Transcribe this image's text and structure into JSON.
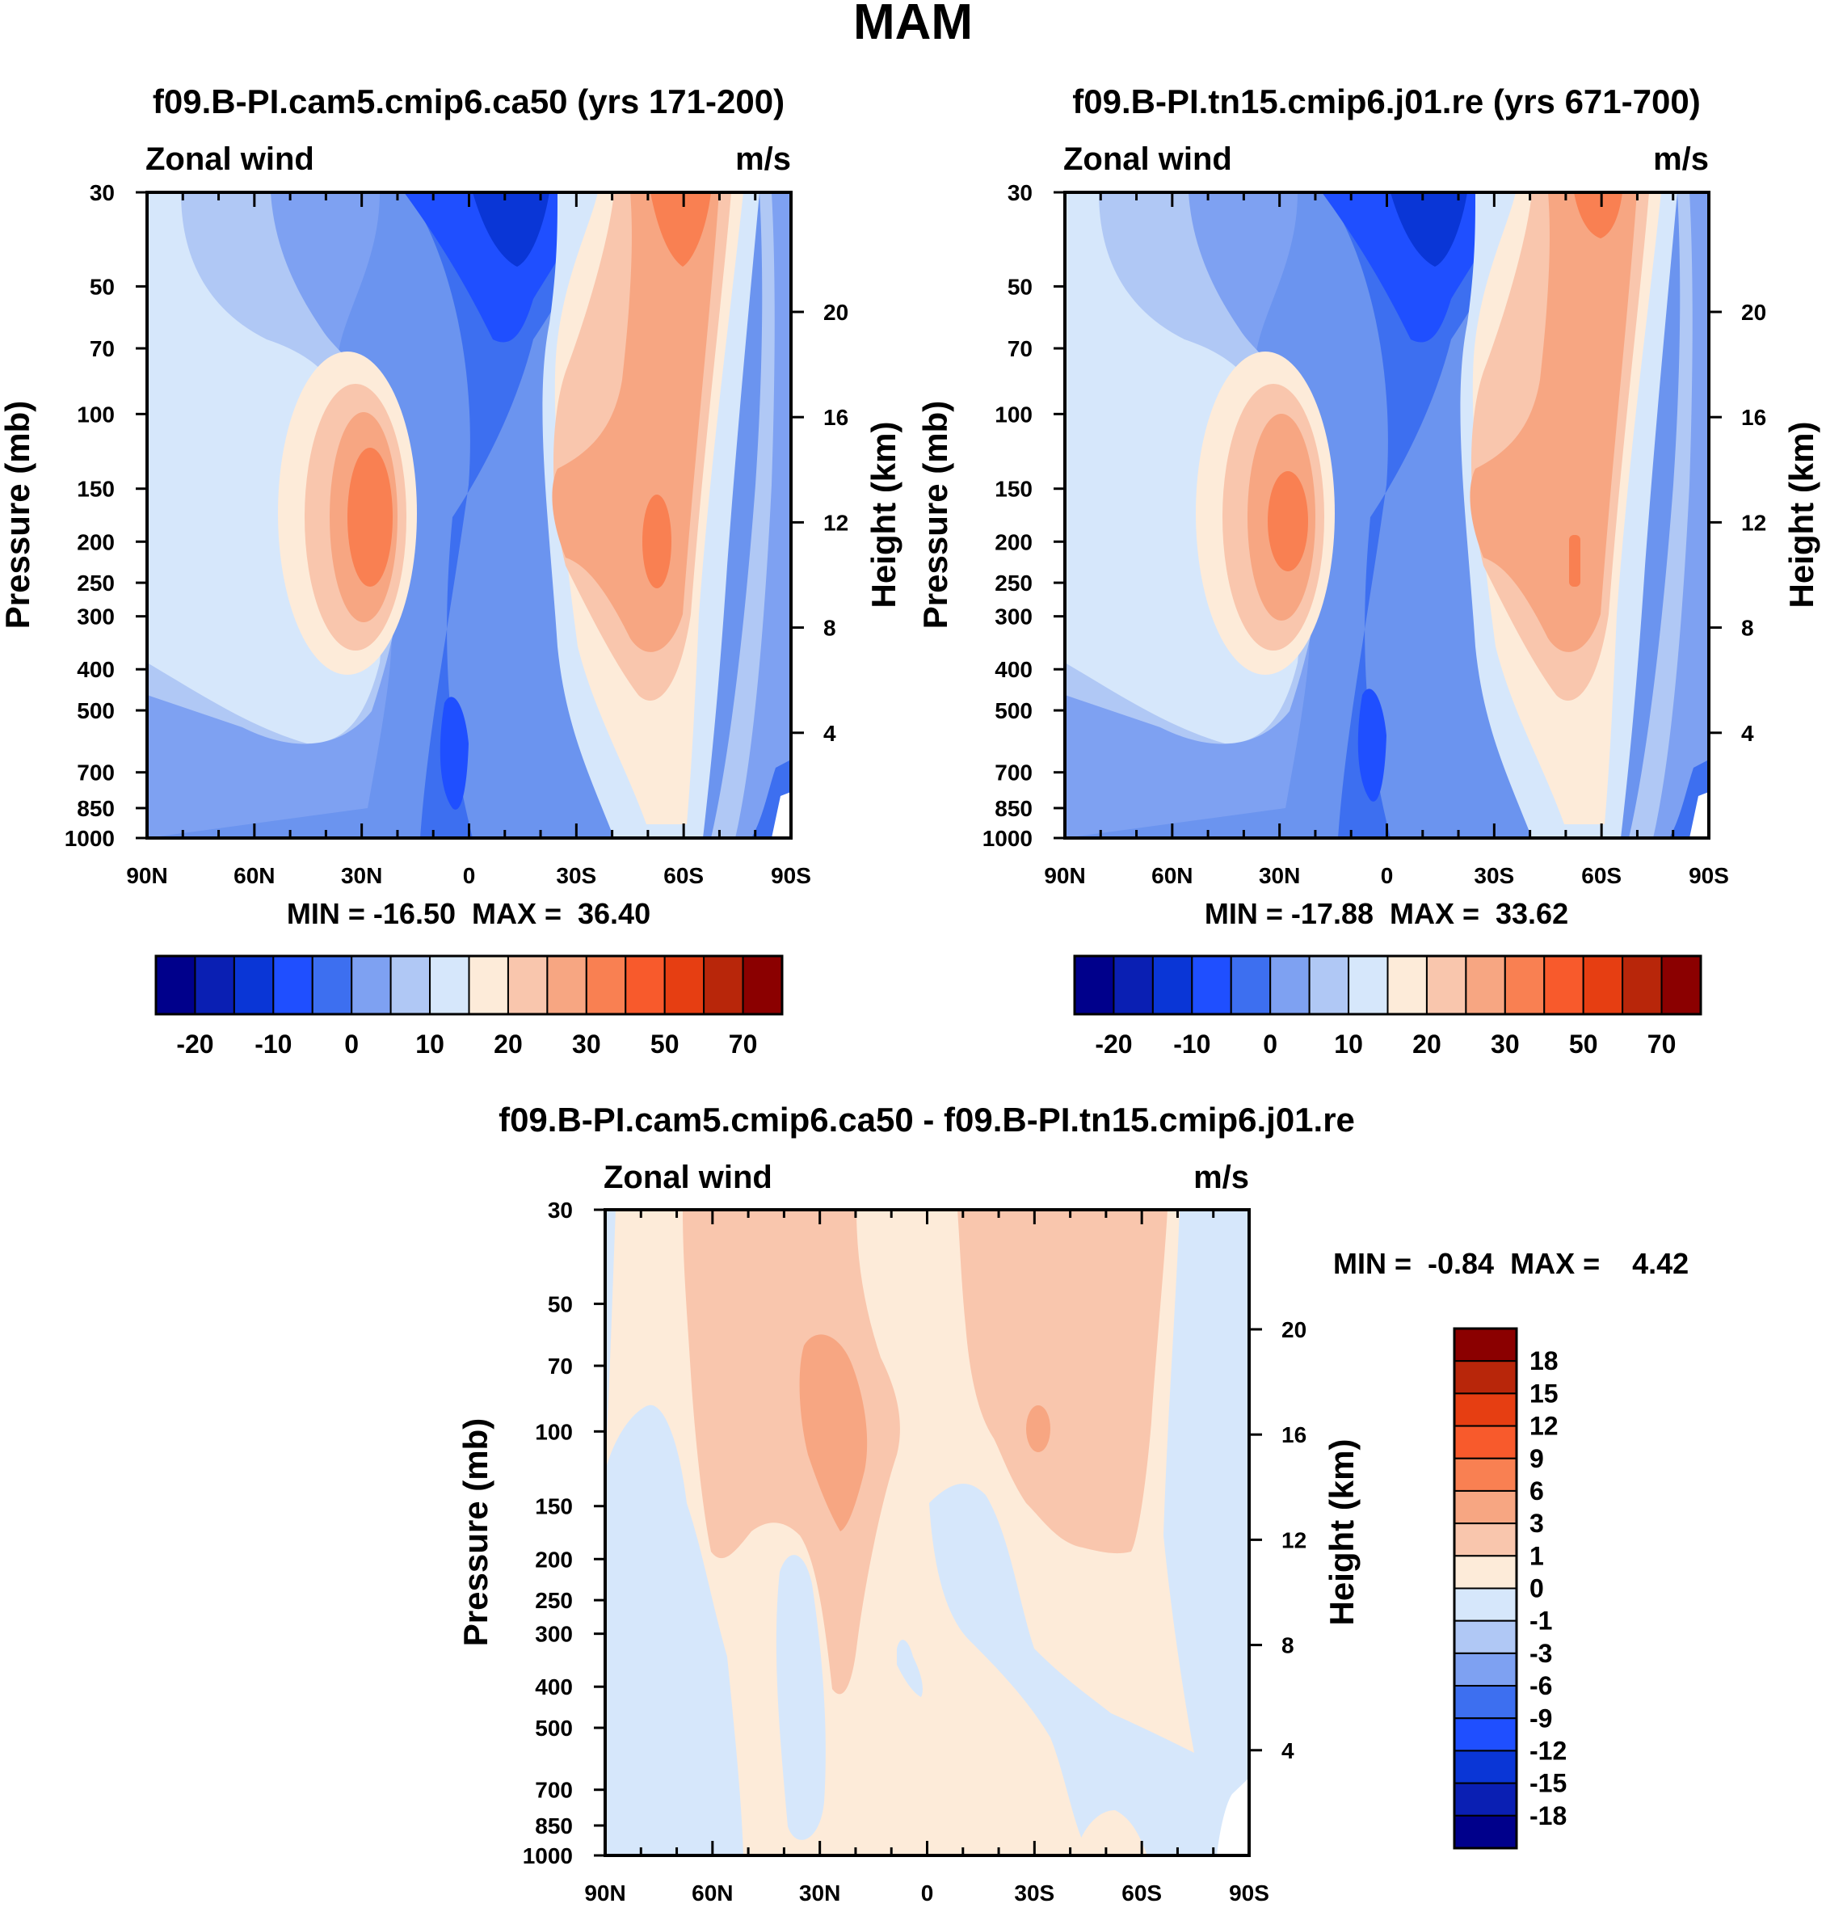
{
  "figure": {
    "title": "MAM"
  },
  "colors": {
    "abs_palette": [
      "#00008b",
      "#0a1fb3",
      "#0a36d6",
      "#1f4fff",
      "#3d6ff0",
      "#7ea1f2",
      "#b0c8f5",
      "#d6e7fb",
      "#fdebd9",
      "#f9c6ad",
      "#f7a682",
      "#f98052",
      "#f85a2c",
      "#e63e12",
      "#b8260a",
      "#8b0000"
    ],
    "diff_palette": [
      "#00008b",
      "#0a1fb3",
      "#0a36d6",
      "#1f4fff",
      "#3d6ff0",
      "#7ea1f2",
      "#b0c8f5",
      "#d6e7fb",
      "#fdebd9",
      "#f9c6ad",
      "#f7a682",
      "#f98052",
      "#f85a2c",
      "#e63e12",
      "#b8260a",
      "#8b0000"
    ]
  },
  "chart_data": [
    {
      "type": "heatmap",
      "title": "f09.B-PI.cam5.cmip6.ca50 (yrs 171-200)",
      "left_label": "Zonal wind",
      "right_label": "m/s",
      "ylabel": "Pressure (mb)",
      "y2label": "Height (km)",
      "x_ticks": [
        "90N",
        "60N",
        "30N",
        "0",
        "30S",
        "60S",
        "90S"
      ],
      "y_ticks": [
        "30",
        "50",
        "70",
        "100",
        "150",
        "200",
        "250",
        "300",
        "400",
        "500",
        "700",
        "850",
        "1000"
      ],
      "y2_ticks": [
        "20",
        "16",
        "12",
        "8",
        "4"
      ],
      "stats": "MIN = -16.50  MAX =  36.40",
      "colorbar_labels": [
        "-20",
        "-10",
        "0",
        "10",
        "20",
        "30",
        "50",
        "70"
      ],
      "min": -16.5,
      "max": 36.4
    },
    {
      "type": "heatmap",
      "title": "f09.B-PI.tn15.cmip6.j01.re (yrs 671-700)",
      "left_label": "Zonal wind",
      "right_label": "m/s",
      "ylabel": "Pressure (mb)",
      "y2label": "Height (km)",
      "x_ticks": [
        "90N",
        "60N",
        "30N",
        "0",
        "30S",
        "60S",
        "90S"
      ],
      "y_ticks": [
        "30",
        "50",
        "70",
        "100",
        "150",
        "200",
        "250",
        "300",
        "400",
        "500",
        "700",
        "850",
        "1000"
      ],
      "y2_ticks": [
        "20",
        "16",
        "12",
        "8",
        "4"
      ],
      "stats": "MIN = -17.88  MAX =  33.62",
      "colorbar_labels": [
        "-20",
        "-10",
        "0",
        "10",
        "20",
        "30",
        "50",
        "70"
      ],
      "min": -17.88,
      "max": 33.62
    },
    {
      "type": "heatmap",
      "title": "f09.B-PI.cam5.cmip6.ca50 - f09.B-PI.tn15.cmip6.j01.re",
      "left_label": "Zonal wind",
      "right_label": "m/s",
      "ylabel": "Pressure (mb)",
      "y2label": "Height (km)",
      "x_ticks": [
        "90N",
        "60N",
        "30N",
        "0",
        "30S",
        "60S",
        "90S"
      ],
      "y_ticks": [
        "30",
        "50",
        "70",
        "100",
        "150",
        "200",
        "250",
        "300",
        "400",
        "500",
        "700",
        "850",
        "1000"
      ],
      "y2_ticks": [
        "20",
        "16",
        "12",
        "8",
        "4"
      ],
      "stats": "MIN =  -0.84  MAX =    4.42",
      "colorbar_labels": [
        "18",
        "15",
        "12",
        "9",
        "6",
        "3",
        "1",
        "0",
        "-1",
        "-3",
        "-6",
        "-9",
        "-12",
        "-15",
        "-18"
      ],
      "min": -0.84,
      "max": 4.42
    }
  ]
}
